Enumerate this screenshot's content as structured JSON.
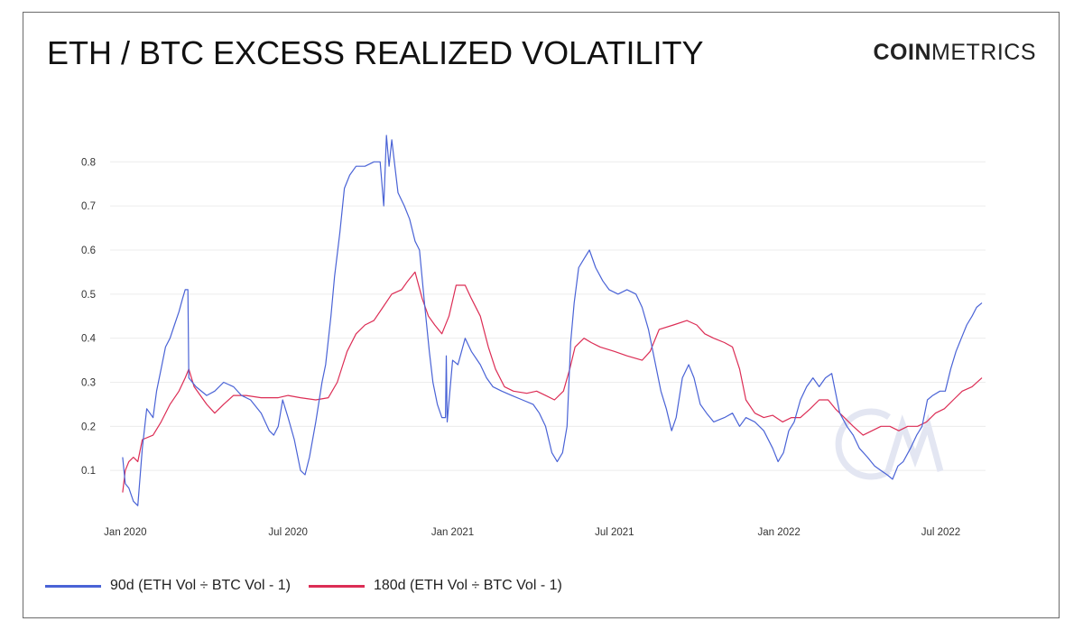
{
  "header": {
    "title": "ETH / BTC EXCESS REALIZED VOLATILITY",
    "brand_bold": "COIN",
    "brand_light": "METRICS"
  },
  "colors": {
    "series_90d": "#4a63d6",
    "series_180d": "#dc2d55",
    "grid": "#ececec",
    "watermark": "#e3e6f2"
  },
  "chart_data": {
    "type": "line",
    "xlim": [
      "2019-12-15",
      "2022-08-20"
    ],
    "ylim": [
      0.0,
      0.86
    ],
    "yticks": [
      0.1,
      0.2,
      0.3,
      0.4,
      0.5,
      0.6,
      0.7,
      0.8
    ],
    "ytick_labels": [
      "0.1",
      "0.2",
      "0.3",
      "0.4",
      "0.5",
      "0.6",
      "0.7",
      "0.8"
    ],
    "xticks": [
      "2020-01-01",
      "2020-07-01",
      "2021-01-01",
      "2021-07-01",
      "2022-01-01",
      "2022-07-01"
    ],
    "xtick_labels": [
      "Jan 2020",
      "Jul 2020",
      "Jan 2021",
      "Jul 2021",
      "Jan 2022",
      "Jul 2022"
    ],
    "grid": true,
    "legend_position": "bottom-left",
    "series": [
      {
        "name": "90d (ETH Vol ÷ BTC Vol - 1)",
        "points": [
          [
            "2019-12-29",
            0.13
          ],
          [
            "2020-01-01",
            0.07
          ],
          [
            "2020-01-05",
            0.06
          ],
          [
            "2020-01-10",
            0.03
          ],
          [
            "2020-01-15",
            0.02
          ],
          [
            "2020-01-20",
            0.15
          ],
          [
            "2020-01-25",
            0.24
          ],
          [
            "2020-02-01",
            0.22
          ],
          [
            "2020-02-05",
            0.28
          ],
          [
            "2020-02-10",
            0.33
          ],
          [
            "2020-02-15",
            0.38
          ],
          [
            "2020-02-20",
            0.4
          ],
          [
            "2020-02-25",
            0.43
          ],
          [
            "2020-03-01",
            0.46
          ],
          [
            "2020-03-05",
            0.49
          ],
          [
            "2020-03-08",
            0.51
          ],
          [
            "2020-03-11",
            0.51
          ],
          [
            "2020-03-12",
            0.31
          ],
          [
            "2020-03-20",
            0.29
          ],
          [
            "2020-04-01",
            0.27
          ],
          [
            "2020-04-10",
            0.28
          ],
          [
            "2020-04-20",
            0.3
          ],
          [
            "2020-05-01",
            0.29
          ],
          [
            "2020-05-10",
            0.27
          ],
          [
            "2020-05-20",
            0.26
          ],
          [
            "2020-06-01",
            0.23
          ],
          [
            "2020-06-10",
            0.19
          ],
          [
            "2020-06-15",
            0.18
          ],
          [
            "2020-06-20",
            0.2
          ],
          [
            "2020-06-25",
            0.26
          ],
          [
            "2020-07-01",
            0.22
          ],
          [
            "2020-07-08",
            0.17
          ],
          [
            "2020-07-15",
            0.1
          ],
          [
            "2020-07-20",
            0.09
          ],
          [
            "2020-07-25",
            0.13
          ],
          [
            "2020-08-01",
            0.21
          ],
          [
            "2020-08-08",
            0.3
          ],
          [
            "2020-08-12",
            0.34
          ],
          [
            "2020-08-18",
            0.45
          ],
          [
            "2020-08-22",
            0.54
          ],
          [
            "2020-08-28",
            0.64
          ],
          [
            "2020-09-02",
            0.74
          ],
          [
            "2020-09-08",
            0.77
          ],
          [
            "2020-09-15",
            0.79
          ],
          [
            "2020-09-25",
            0.79
          ],
          [
            "2020-10-05",
            0.8
          ],
          [
            "2020-10-12",
            0.8
          ],
          [
            "2020-10-16",
            0.7
          ],
          [
            "2020-10-19",
            0.86
          ],
          [
            "2020-10-22",
            0.79
          ],
          [
            "2020-10-25",
            0.85
          ],
          [
            "2020-11-01",
            0.73
          ],
          [
            "2020-11-08",
            0.7
          ],
          [
            "2020-11-14",
            0.67
          ],
          [
            "2020-11-20",
            0.62
          ],
          [
            "2020-11-25",
            0.6
          ],
          [
            "2020-12-01",
            0.47
          ],
          [
            "2020-12-06",
            0.37
          ],
          [
            "2020-12-10",
            0.3
          ],
          [
            "2020-12-15",
            0.25
          ],
          [
            "2020-12-20",
            0.22
          ],
          [
            "2020-12-24",
            0.22
          ],
          [
            "2020-12-25",
            0.36
          ],
          [
            "2020-12-26",
            0.21
          ],
          [
            "2021-01-01",
            0.35
          ],
          [
            "2021-01-07",
            0.34
          ],
          [
            "2021-01-15",
            0.4
          ],
          [
            "2021-01-22",
            0.37
          ],
          [
            "2021-02-01",
            0.34
          ],
          [
            "2021-02-08",
            0.31
          ],
          [
            "2021-02-15",
            0.29
          ],
          [
            "2021-02-25",
            0.28
          ],
          [
            "2021-03-08",
            0.27
          ],
          [
            "2021-03-20",
            0.26
          ],
          [
            "2021-04-01",
            0.25
          ],
          [
            "2021-04-08",
            0.23
          ],
          [
            "2021-04-15",
            0.2
          ],
          [
            "2021-04-22",
            0.14
          ],
          [
            "2021-04-28",
            0.12
          ],
          [
            "2021-05-04",
            0.14
          ],
          [
            "2021-05-09",
            0.2
          ],
          [
            "2021-05-13",
            0.39
          ],
          [
            "2021-05-17",
            0.48
          ],
          [
            "2021-05-22",
            0.56
          ],
          [
            "2021-05-28",
            0.58
          ],
          [
            "2021-06-03",
            0.6
          ],
          [
            "2021-06-10",
            0.56
          ],
          [
            "2021-06-18",
            0.53
          ],
          [
            "2021-06-25",
            0.51
          ],
          [
            "2021-07-05",
            0.5
          ],
          [
            "2021-07-15",
            0.51
          ],
          [
            "2021-07-25",
            0.5
          ],
          [
            "2021-08-01",
            0.47
          ],
          [
            "2021-08-08",
            0.42
          ],
          [
            "2021-08-15",
            0.35
          ],
          [
            "2021-08-22",
            0.28
          ],
          [
            "2021-08-28",
            0.24
          ],
          [
            "2021-09-03",
            0.19
          ],
          [
            "2021-09-08",
            0.22
          ],
          [
            "2021-09-15",
            0.31
          ],
          [
            "2021-09-22",
            0.34
          ],
          [
            "2021-09-28",
            0.31
          ],
          [
            "2021-10-05",
            0.25
          ],
          [
            "2021-10-12",
            0.23
          ],
          [
            "2021-10-20",
            0.21
          ],
          [
            "2021-11-01",
            0.22
          ],
          [
            "2021-11-10",
            0.23
          ],
          [
            "2021-11-18",
            0.2
          ],
          [
            "2021-11-25",
            0.22
          ],
          [
            "2021-12-05",
            0.21
          ],
          [
            "2021-12-15",
            0.19
          ],
          [
            "2021-12-25",
            0.15
          ],
          [
            "2021-12-31",
            0.12
          ],
          [
            "2022-01-06",
            0.14
          ],
          [
            "2022-01-12",
            0.19
          ],
          [
            "2022-01-18",
            0.21
          ],
          [
            "2022-01-25",
            0.26
          ],
          [
            "2022-02-01",
            0.29
          ],
          [
            "2022-02-08",
            0.31
          ],
          [
            "2022-02-15",
            0.29
          ],
          [
            "2022-02-22",
            0.31
          ],
          [
            "2022-03-01",
            0.32
          ],
          [
            "2022-03-05",
            0.28
          ],
          [
            "2022-03-10",
            0.23
          ],
          [
            "2022-03-18",
            0.2
          ],
          [
            "2022-03-25",
            0.18
          ],
          [
            "2022-04-01",
            0.15
          ],
          [
            "2022-04-10",
            0.13
          ],
          [
            "2022-04-18",
            0.11
          ],
          [
            "2022-04-25",
            0.1
          ],
          [
            "2022-05-02",
            0.09
          ],
          [
            "2022-05-08",
            0.08
          ],
          [
            "2022-05-14",
            0.11
          ],
          [
            "2022-05-20",
            0.12
          ],
          [
            "2022-05-28",
            0.15
          ],
          [
            "2022-06-04",
            0.18
          ],
          [
            "2022-06-10",
            0.2
          ],
          [
            "2022-06-16",
            0.26
          ],
          [
            "2022-06-22",
            0.27
          ],
          [
            "2022-06-30",
            0.28
          ],
          [
            "2022-07-06",
            0.28
          ],
          [
            "2022-07-12",
            0.33
          ],
          [
            "2022-07-18",
            0.37
          ],
          [
            "2022-07-24",
            0.4
          ],
          [
            "2022-07-30",
            0.43
          ],
          [
            "2022-08-05",
            0.45
          ],
          [
            "2022-08-10",
            0.47
          ],
          [
            "2022-08-16",
            0.48
          ]
        ]
      },
      {
        "name": "180d (ETH Vol ÷ BTC Vol - 1)",
        "points": [
          [
            "2019-12-29",
            0.05
          ],
          [
            "2020-01-01",
            0.1
          ],
          [
            "2020-01-05",
            0.12
          ],
          [
            "2020-01-10",
            0.13
          ],
          [
            "2020-01-15",
            0.12
          ],
          [
            "2020-01-20",
            0.17
          ],
          [
            "2020-02-01",
            0.18
          ],
          [
            "2020-02-10",
            0.21
          ],
          [
            "2020-02-20",
            0.25
          ],
          [
            "2020-03-01",
            0.28
          ],
          [
            "2020-03-08",
            0.31
          ],
          [
            "2020-03-12",
            0.33
          ],
          [
            "2020-03-18",
            0.29
          ],
          [
            "2020-04-01",
            0.25
          ],
          [
            "2020-04-10",
            0.23
          ],
          [
            "2020-04-20",
            0.25
          ],
          [
            "2020-05-01",
            0.27
          ],
          [
            "2020-05-15",
            0.27
          ],
          [
            "2020-06-01",
            0.265
          ],
          [
            "2020-06-20",
            0.265
          ],
          [
            "2020-07-01",
            0.27
          ],
          [
            "2020-07-15",
            0.265
          ],
          [
            "2020-08-01",
            0.26
          ],
          [
            "2020-08-15",
            0.265
          ],
          [
            "2020-08-25",
            0.3
          ],
          [
            "2020-09-05",
            0.37
          ],
          [
            "2020-09-15",
            0.41
          ],
          [
            "2020-09-25",
            0.43
          ],
          [
            "2020-10-05",
            0.44
          ],
          [
            "2020-10-15",
            0.47
          ],
          [
            "2020-10-25",
            0.5
          ],
          [
            "2020-11-05",
            0.51
          ],
          [
            "2020-11-12",
            0.53
          ],
          [
            "2020-11-20",
            0.55
          ],
          [
            "2020-11-28",
            0.49
          ],
          [
            "2020-12-05",
            0.45
          ],
          [
            "2020-12-12",
            0.43
          ],
          [
            "2020-12-20",
            0.41
          ],
          [
            "2020-12-28",
            0.45
          ],
          [
            "2021-01-05",
            0.52
          ],
          [
            "2021-01-15",
            0.52
          ],
          [
            "2021-01-22",
            0.49
          ],
          [
            "2021-02-01",
            0.45
          ],
          [
            "2021-02-10",
            0.38
          ],
          [
            "2021-02-18",
            0.33
          ],
          [
            "2021-02-28",
            0.29
          ],
          [
            "2021-03-10",
            0.28
          ],
          [
            "2021-03-25",
            0.275
          ],
          [
            "2021-04-05",
            0.28
          ],
          [
            "2021-04-15",
            0.27
          ],
          [
            "2021-04-25",
            0.26
          ],
          [
            "2021-05-05",
            0.28
          ],
          [
            "2021-05-12",
            0.33
          ],
          [
            "2021-05-18",
            0.38
          ],
          [
            "2021-05-28",
            0.4
          ],
          [
            "2021-06-05",
            0.39
          ],
          [
            "2021-06-15",
            0.38
          ],
          [
            "2021-07-01",
            0.37
          ],
          [
            "2021-07-15",
            0.36
          ],
          [
            "2021-08-01",
            0.35
          ],
          [
            "2021-08-10",
            0.37
          ],
          [
            "2021-08-20",
            0.42
          ],
          [
            "2021-09-05",
            0.43
          ],
          [
            "2021-09-20",
            0.44
          ],
          [
            "2021-10-01",
            0.43
          ],
          [
            "2021-10-10",
            0.41
          ],
          [
            "2021-10-20",
            0.4
          ],
          [
            "2021-11-01",
            0.39
          ],
          [
            "2021-11-10",
            0.38
          ],
          [
            "2021-11-18",
            0.33
          ],
          [
            "2021-11-25",
            0.26
          ],
          [
            "2021-12-05",
            0.23
          ],
          [
            "2021-12-15",
            0.22
          ],
          [
            "2021-12-25",
            0.225
          ],
          [
            "2022-01-05",
            0.21
          ],
          [
            "2022-01-15",
            0.22
          ],
          [
            "2022-01-25",
            0.22
          ],
          [
            "2022-02-05",
            0.24
          ],
          [
            "2022-02-15",
            0.26
          ],
          [
            "2022-02-25",
            0.26
          ],
          [
            "2022-03-05",
            0.24
          ],
          [
            "2022-03-15",
            0.22
          ],
          [
            "2022-03-25",
            0.2
          ],
          [
            "2022-04-05",
            0.18
          ],
          [
            "2022-04-15",
            0.19
          ],
          [
            "2022-04-25",
            0.2
          ],
          [
            "2022-05-05",
            0.2
          ],
          [
            "2022-05-15",
            0.19
          ],
          [
            "2022-05-25",
            0.2
          ],
          [
            "2022-06-05",
            0.2
          ],
          [
            "2022-06-15",
            0.21
          ],
          [
            "2022-06-25",
            0.23
          ],
          [
            "2022-07-05",
            0.24
          ],
          [
            "2022-07-15",
            0.26
          ],
          [
            "2022-07-25",
            0.28
          ],
          [
            "2022-08-05",
            0.29
          ],
          [
            "2022-08-16",
            0.31
          ]
        ]
      }
    ]
  }
}
